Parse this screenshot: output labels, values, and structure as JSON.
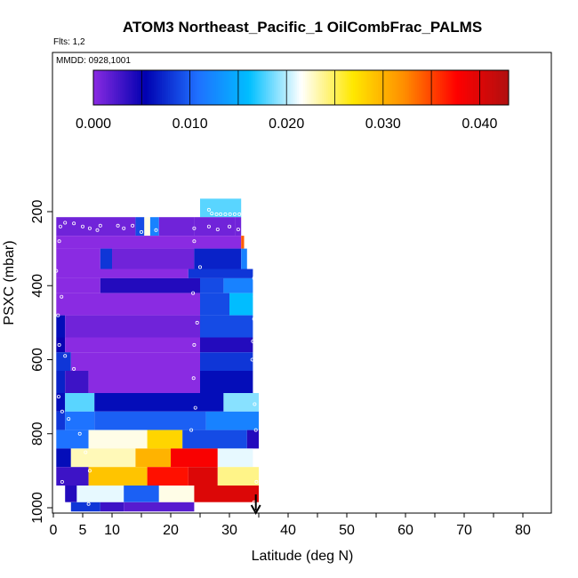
{
  "chart_data": {
    "type": "heatmap",
    "title": "ATOM3 Northeast_Pacific_1 OilCombFrac_PALMS",
    "flights_label": "Flts: 1,2",
    "date_label": "MMDD: 0928,1001",
    "xlabel": "Latitude (deg N)",
    "ylabel": "PSXC (mbar)",
    "xlim": [
      0,
      85
    ],
    "ylim": [
      1010,
      0
    ],
    "x_ticks": [
      "0",
      "5",
      "10",
      "20",
      "30",
      "40",
      "50",
      "60",
      "70",
      "80"
    ],
    "x_tick_values": [
      0,
      5,
      10,
      20,
      30,
      40,
      50,
      60,
      70,
      80
    ],
    "y_ticks": [
      "200",
      "400",
      "600",
      "800",
      "1000"
    ],
    "y_tick_values": [
      200,
      400,
      600,
      800,
      1000
    ],
    "colorbar": {
      "min": 0.0,
      "max": 0.043,
      "tick_labels": [
        "0.000",
        "0.010",
        "0.020",
        "0.030",
        "0.040"
      ],
      "tick_values": [
        0.0,
        0.01,
        0.02,
        0.03,
        0.04
      ],
      "segment_edges": [
        0.0,
        0.005,
        0.01,
        0.015,
        0.02,
        0.025,
        0.03,
        0.035,
        0.04,
        0.043
      ],
      "colors": [
        "#8a2be2",
        "#0000b0",
        "#1f6fff",
        "#00bfff",
        "#ffffff",
        "#ffe800",
        "#ff8c00",
        "#ff0000",
        "#b01010"
      ]
    },
    "rows": [
      {
        "p": [
          165,
          215
        ],
        "cells": [
          [
            25,
            32,
            0.018
          ]
        ]
      },
      {
        "p": [
          215,
          265
        ],
        "cells": [
          [
            0.5,
            14,
            0.001
          ],
          [
            14,
            15.5,
            0.009
          ],
          [
            15.5,
            16.5,
            0.022
          ],
          [
            16.5,
            18,
            0.012
          ],
          [
            18,
            24,
            0.001
          ],
          [
            24,
            31,
            0.001
          ],
          [
            31,
            32,
            0.001
          ]
        ]
      },
      {
        "p": [
          265,
          300
        ],
        "cells": [
          [
            0.5,
            32,
            0.0
          ],
          [
            32,
            32.5,
            0.034
          ]
        ]
      },
      {
        "p": [
          300,
          355
        ],
        "cells": [
          [
            0.5,
            8,
            0.0
          ],
          [
            8,
            10,
            0.008
          ],
          [
            10,
            24,
            0.001
          ],
          [
            24,
            32,
            0.007
          ],
          [
            32,
            33,
            0.012
          ]
        ]
      },
      {
        "p": [
          355,
          380
        ],
        "cells": [
          [
            0.5,
            23,
            0.0
          ],
          [
            23,
            34,
            0.008
          ]
        ]
      },
      {
        "p": [
          380,
          420
        ],
        "cells": [
          [
            0.5,
            8,
            0.0
          ],
          [
            8,
            25,
            0.004
          ],
          [
            25,
            29,
            0.009
          ],
          [
            29,
            34,
            0.012
          ]
        ]
      },
      {
        "p": [
          420,
          480
        ],
        "cells": [
          [
            0.5,
            25,
            0.0
          ],
          [
            25,
            30,
            0.009
          ],
          [
            30,
            34,
            0.016
          ]
        ]
      },
      {
        "p": [
          480,
          540
        ],
        "cells": [
          [
            0.5,
            2,
            0.006
          ],
          [
            2,
            25,
            0.001
          ],
          [
            25,
            34,
            0.009
          ]
        ]
      },
      {
        "p": [
          540,
          580
        ],
        "cells": [
          [
            0.5,
            2,
            0.005
          ],
          [
            2,
            25,
            0.0
          ],
          [
            25,
            34,
            0.004
          ]
        ]
      },
      {
        "p": [
          580,
          630
        ],
        "cells": [
          [
            0.5,
            3,
            0.008
          ],
          [
            3,
            25,
            0.0
          ],
          [
            25,
            34,
            0.008
          ]
        ]
      },
      {
        "p": [
          630,
          690
        ],
        "cells": [
          [
            0.5,
            2,
            0.007
          ],
          [
            2,
            6,
            0.003
          ],
          [
            6,
            25,
            0.0
          ],
          [
            25,
            34,
            0.006
          ]
        ]
      },
      {
        "p": [
          690,
          740
        ],
        "cells": [
          [
            0.5,
            2,
            0.006
          ],
          [
            2,
            7,
            0.018
          ],
          [
            7,
            29,
            0.006
          ],
          [
            29,
            35,
            0.019
          ]
        ]
      },
      {
        "p": [
          740,
          790
        ],
        "cells": [
          [
            0.5,
            2,
            0.008
          ],
          [
            2,
            7,
            0.011
          ],
          [
            7,
            26,
            0.01
          ],
          [
            26,
            35,
            0.012
          ]
        ]
      },
      {
        "p": [
          790,
          840
        ],
        "cells": [
          [
            0.5,
            6,
            0.011
          ],
          [
            6,
            16,
            0.022
          ],
          [
            16,
            22,
            0.028
          ],
          [
            22,
            33,
            0.009
          ],
          [
            33,
            35,
            0.004
          ]
        ]
      },
      {
        "p": [
          840,
          890
        ],
        "cells": [
          [
            0.5,
            3,
            0.006
          ],
          [
            3,
            14,
            0.023
          ],
          [
            14,
            20,
            0.03
          ],
          [
            20,
            28,
            0.038
          ],
          [
            28,
            34,
            0.021
          ]
        ]
      },
      {
        "p": [
          890,
          940
        ],
        "cells": [
          [
            0.5,
            6,
            0.003
          ],
          [
            6,
            16,
            0.029
          ],
          [
            16,
            23,
            0.037
          ],
          [
            23,
            28,
            0.04
          ],
          [
            28,
            35,
            0.024
          ]
        ]
      },
      {
        "p": [
          940,
          985
        ],
        "cells": [
          [
            2,
            4,
            0.004
          ],
          [
            4,
            12,
            0.021
          ],
          [
            12,
            18,
            0.01
          ],
          [
            18,
            24,
            0.022
          ],
          [
            24,
            35,
            0.04
          ]
        ]
      },
      {
        "p": [
          985,
          1010
        ],
        "cells": [
          [
            3,
            8,
            0.008
          ],
          [
            8,
            12,
            0.003
          ],
          [
            12,
            24,
            0.002
          ]
        ]
      }
    ],
    "arrow_latitude": 34.5,
    "markers": [
      [
        1.2,
        240
      ],
      [
        2.0,
        230
      ],
      [
        3.5,
        232
      ],
      [
        5.0,
        240
      ],
      [
        6.2,
        245
      ],
      [
        7.5,
        250
      ],
      [
        8.0,
        238
      ],
      [
        11.0,
        238
      ],
      [
        12.0,
        245
      ],
      [
        13.5,
        238
      ],
      [
        15.0,
        255
      ],
      [
        17.5,
        250
      ],
      [
        24.0,
        245
      ],
      [
        26.5,
        240
      ],
      [
        28.0,
        248
      ],
      [
        30.0,
        240
      ],
      [
        31.5,
        248
      ],
      [
        1.0,
        280
      ],
      [
        0.5,
        360
      ],
      [
        1.4,
        430
      ],
      [
        0.8,
        480
      ],
      [
        1.0,
        560
      ],
      [
        2.0,
        590
      ],
      [
        3.5,
        625
      ],
      [
        0.9,
        700
      ],
      [
        1.5,
        740
      ],
      [
        2.6,
        760
      ],
      [
        4.5,
        800
      ],
      [
        5.5,
        850
      ],
      [
        6.2,
        900
      ],
      [
        1.5,
        930
      ],
      [
        0.7,
        980
      ],
      [
        2.0,
        990
      ],
      [
        6.0,
        990
      ],
      [
        24.0,
        280
      ],
      [
        25.0,
        350
      ],
      [
        23.8,
        420
      ],
      [
        24.5,
        500
      ],
      [
        24.0,
        560
      ],
      [
        23.9,
        650
      ],
      [
        24.2,
        730
      ],
      [
        23.5,
        790
      ],
      [
        33.5,
        250
      ],
      [
        33.8,
        290
      ],
      [
        34.0,
        330
      ],
      [
        34.2,
        380
      ],
      [
        34.3,
        430
      ],
      [
        34.2,
        490
      ],
      [
        34.0,
        550
      ],
      [
        33.9,
        600
      ],
      [
        34.5,
        660
      ],
      [
        34.3,
        720
      ],
      [
        34.5,
        790
      ],
      [
        34.6,
        870
      ],
      [
        34.6,
        930
      ],
      [
        34.2,
        985
      ],
      [
        26.5,
        195
      ],
      [
        27.0,
        205
      ],
      [
        27.8,
        207
      ],
      [
        28.5,
        207
      ],
      [
        29.3,
        207
      ],
      [
        30.1,
        207
      ],
      [
        30.9,
        207
      ],
      [
        31.7,
        207
      ]
    ]
  }
}
